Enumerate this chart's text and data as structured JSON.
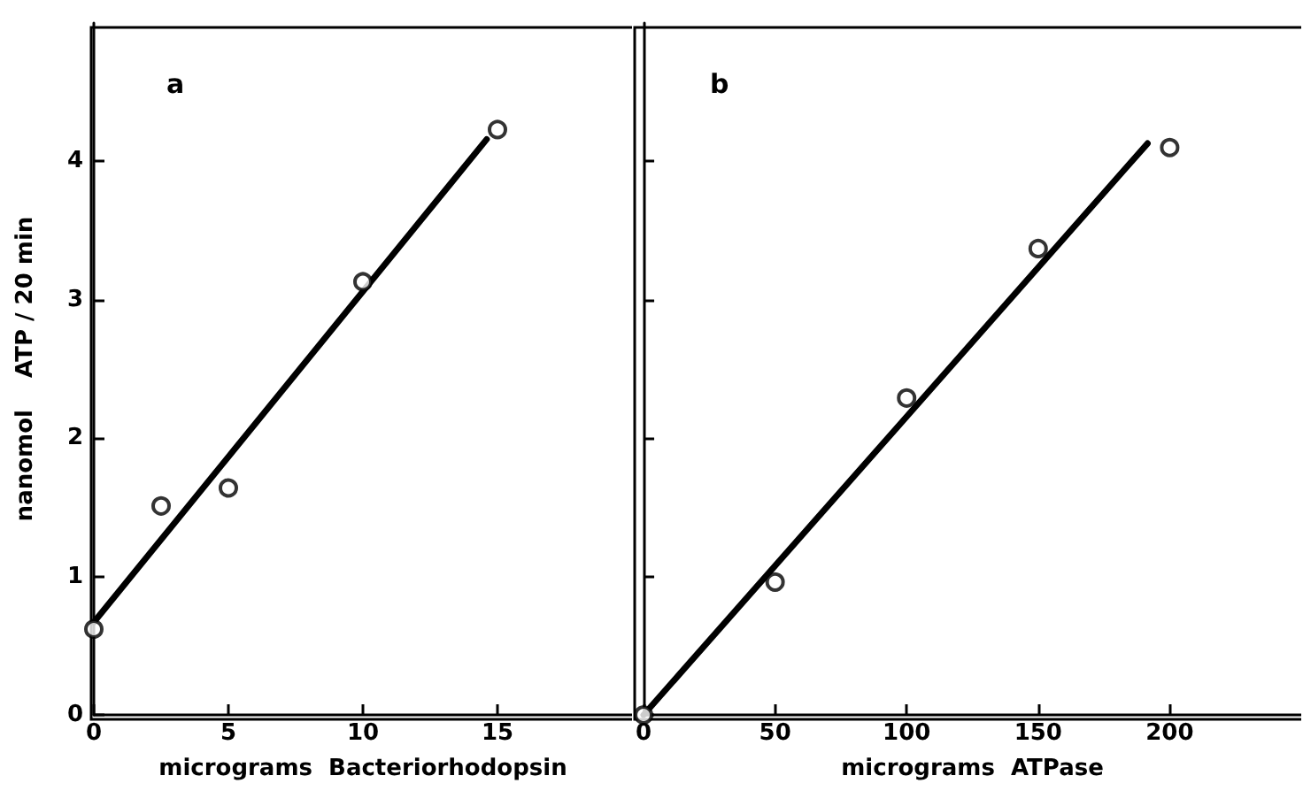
{
  "chart_data": [
    {
      "type": "scatter",
      "xlabel": "micrograms  Bacteriorhodopsin",
      "ylabel": "nanomol    ATP / 20 min",
      "annotations": [
        "a"
      ],
      "xlim": [
        0,
        20
      ],
      "xticks": [
        0,
        5,
        10,
        15
      ],
      "ylim": [
        0,
        5
      ],
      "yticks": [
        0,
        1,
        2,
        3,
        4
      ],
      "grid": false,
      "marker": "circle",
      "series": [
        {
          "color": "#000000",
          "x": [
            0,
            2.5,
            5,
            10,
            15
          ],
          "values": [
            0.62,
            1.51,
            1.64,
            3.13,
            4.23
          ]
        },
        {
          "type": "line",
          "color": "#000000",
          "marker": "none",
          "x": [
            0,
            14.6
          ],
          "values": [
            0.67,
            4.16
          ]
        }
      ]
    },
    {
      "type": "scatter",
      "xlabel": "micrograms  ATPase",
      "annotations": [
        "b"
      ],
      "xlim": [
        0,
        250
      ],
      "xticks": [
        0,
        50,
        100,
        150,
        200
      ],
      "ylim": [
        0,
        5
      ],
      "yticks": [
        0,
        1,
        2,
        3,
        4
      ],
      "tick_labels": "x",
      "grid": false,
      "marker": "circle",
      "series": [
        {
          "color": "#000000",
          "x": [
            0,
            50,
            100,
            150,
            200
          ],
          "values": [
            0,
            0.96,
            2.29,
            3.37,
            4.1
          ]
        },
        {
          "type": "line",
          "color": "#000000",
          "marker": "none",
          "x": [
            0,
            191.6
          ],
          "values": [
            0,
            4.13
          ]
        }
      ]
    }
  ]
}
